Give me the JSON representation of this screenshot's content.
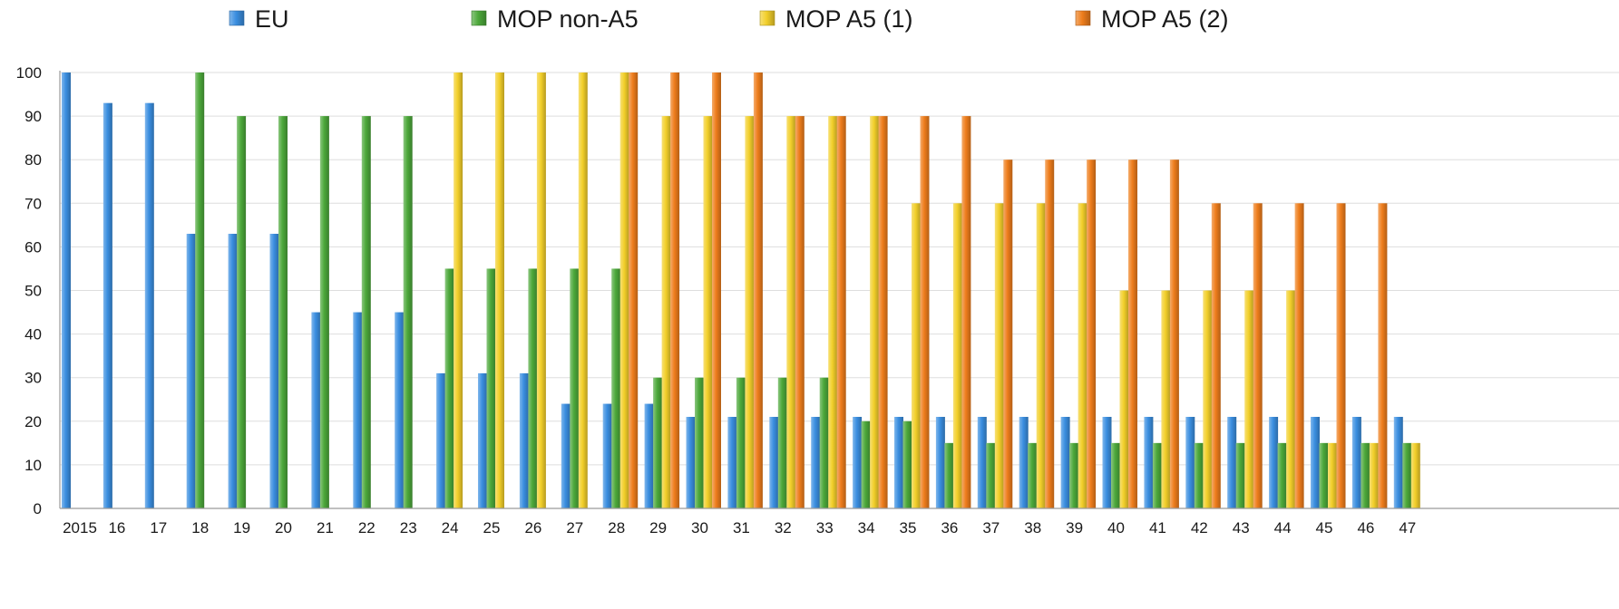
{
  "chart_data": {
    "type": "bar",
    "title": "",
    "xlabel": "",
    "ylabel": "",
    "ylim": [
      0,
      100
    ],
    "y_ticks": [
      "0",
      "10",
      "20",
      "30",
      "40",
      "50",
      "60",
      "70",
      "80",
      "90",
      "100"
    ],
    "grid": true,
    "legend_position": "top",
    "categories": [
      "2015",
      "16",
      "17",
      "18",
      "19",
      "20",
      "21",
      "22",
      "23",
      "24",
      "25",
      "26",
      "27",
      "28",
      "29",
      "30",
      "31",
      "32",
      "33",
      "34",
      "35",
      "36",
      "37",
      "38",
      "39",
      "40",
      "41",
      "42",
      "43",
      "44",
      "45",
      "46",
      "47"
    ],
    "series": [
      {
        "name": "EU",
        "color": "#3a8ee0",
        "values": [
          100,
          93,
          93,
          63,
          63,
          63,
          45,
          45,
          45,
          31,
          31,
          31,
          24,
          24,
          24,
          21,
          21,
          21,
          21,
          21,
          21,
          21,
          21,
          21,
          21,
          21,
          21,
          21,
          21,
          21,
          21,
          21,
          21
        ]
      },
      {
        "name": "MOP non-A5",
        "color": "#4ca83a",
        "values": [
          null,
          null,
          null,
          100,
          90,
          90,
          90,
          90,
          90,
          55,
          55,
          55,
          55,
          55,
          30,
          30,
          30,
          30,
          30,
          20,
          20,
          15,
          15,
          15,
          15,
          15,
          15,
          15,
          15,
          15,
          15,
          15,
          15
        ]
      },
      {
        "name": "MOP A5 (1)",
        "color": "#f2cf2a",
        "values": [
          null,
          null,
          null,
          null,
          null,
          null,
          null,
          null,
          null,
          100,
          100,
          100,
          100,
          100,
          90,
          90,
          90,
          90,
          90,
          90,
          70,
          70,
          70,
          70,
          70,
          50,
          50,
          50,
          50,
          50,
          15,
          15,
          15
        ]
      },
      {
        "name": "MOP A5 (2)",
        "color": "#ee7d1c",
        "values": [
          null,
          null,
          null,
          null,
          null,
          null,
          null,
          null,
          null,
          null,
          null,
          null,
          null,
          100,
          100,
          100,
          100,
          90,
          90,
          90,
          90,
          90,
          80,
          80,
          80,
          80,
          80,
          70,
          70,
          70,
          70,
          70,
          null
        ]
      }
    ]
  }
}
